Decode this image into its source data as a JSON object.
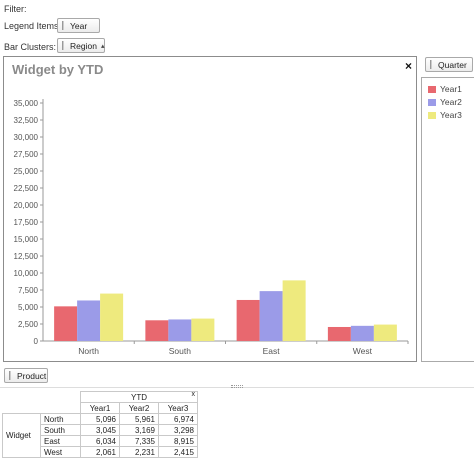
{
  "filter_label": "Filter:",
  "legend_items_label": "Legend Items:",
  "legend_field": "Year",
  "bar_clusters_label": "Bar Clusters:",
  "cluster_field": "Region",
  "cluster_sort_glyph": "▴",
  "side_field": "Quarter",
  "bottom_field": "Product",
  "chart": {
    "title": "Widget by YTD",
    "close_glyph": "×"
  },
  "colors": {
    "year1": "#e8686f",
    "year2": "#9b9be8",
    "year3": "#eeea7e"
  },
  "chart_data": {
    "type": "bar",
    "title": "Widget by YTD",
    "categories": [
      "North",
      "South",
      "East",
      "West"
    ],
    "series": [
      {
        "name": "Year1",
        "values": [
          5096,
          3045,
          6034,
          2061
        ]
      },
      {
        "name": "Year2",
        "values": [
          5961,
          3169,
          7335,
          2231
        ]
      },
      {
        "name": "Year3",
        "values": [
          6974,
          3298,
          8915,
          2415
        ]
      }
    ],
    "yticks": [
      "0",
      "2,500",
      "5,000",
      "7,500",
      "10,000",
      "12,500",
      "15,000",
      "17,500",
      "20,000",
      "22,500",
      "25,000",
      "27,500",
      "30,000",
      "32,500",
      "35,000"
    ],
    "ylim": [
      0,
      35000
    ],
    "grid": false,
    "legend": "right"
  },
  "pivot": {
    "measure": "YTD",
    "close_glyph": "x",
    "row_field": "Widget",
    "columns": [
      "Year1",
      "Year2",
      "Year3"
    ],
    "rows": [
      {
        "label": "North",
        "values": [
          "5,096",
          "5,961",
          "6,974"
        ]
      },
      {
        "label": "South",
        "values": [
          "3,045",
          "3,169",
          "3,298"
        ]
      },
      {
        "label": "East",
        "values": [
          "6,034",
          "7,335",
          "8,915"
        ]
      },
      {
        "label": "West",
        "values": [
          "2,061",
          "2,231",
          "2,415"
        ]
      }
    ]
  }
}
